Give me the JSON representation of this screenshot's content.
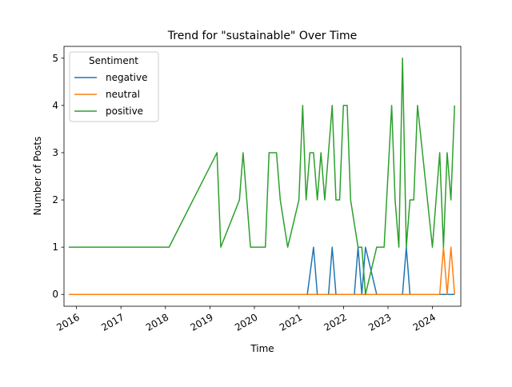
{
  "chart_data": {
    "type": "line",
    "title": "Trend for \"sustainable\" Over Time",
    "xlabel": "Time",
    "ylabel": "Number of Posts",
    "x_axis": {
      "ticks": [
        "2016",
        "2017",
        "2018",
        "2019",
        "2020",
        "2021",
        "2022",
        "2023",
        "2024"
      ],
      "range": [
        "2015-09-22",
        "2024-08-20"
      ]
    },
    "y_axis": {
      "ticks": [
        0,
        1,
        2,
        3,
        4,
        5
      ],
      "range": [
        -0.25,
        5.25
      ]
    },
    "grid": false,
    "legend": {
      "title": "Sentiment",
      "position": "top-left"
    },
    "series": [
      {
        "name": "negative",
        "color": "#1f77b4",
        "points": [
          [
            "2015-10-31",
            0
          ],
          [
            "2021-03-10",
            0
          ],
          [
            "2021-04-30",
            1
          ],
          [
            "2021-05-31",
            0
          ],
          [
            "2021-08-31",
            0
          ],
          [
            "2021-09-30",
            1
          ],
          [
            "2021-10-31",
            0
          ],
          [
            "2022-03-31",
            0
          ],
          [
            "2022-04-30",
            1
          ],
          [
            "2022-05-31",
            0
          ],
          [
            "2022-06-30",
            1
          ],
          [
            "2022-09-30",
            0
          ],
          [
            "2023-04-30",
            0
          ],
          [
            "2023-05-31",
            1
          ],
          [
            "2023-06-30",
            0
          ],
          [
            "2024-06-30",
            0
          ]
        ]
      },
      {
        "name": "neutral",
        "color": "#ff7f0e",
        "points": [
          [
            "2015-10-31",
            0
          ],
          [
            "2024-02-29",
            0
          ],
          [
            "2024-03-31",
            1
          ],
          [
            "2024-04-30",
            0
          ],
          [
            "2024-05-31",
            1
          ],
          [
            "2024-06-30",
            0
          ]
        ]
      },
      {
        "name": "positive",
        "color": "#2ca02c",
        "points": [
          [
            "2015-10-31",
            1
          ],
          [
            "2018-01-31",
            1
          ],
          [
            "2019-02-28",
            3
          ],
          [
            "2019-03-31",
            1
          ],
          [
            "2019-08-31",
            2
          ],
          [
            "2019-09-30",
            3
          ],
          [
            "2019-11-30",
            1
          ],
          [
            "2020-03-31",
            1
          ],
          [
            "2020-04-30",
            3
          ],
          [
            "2020-06-30",
            3
          ],
          [
            "2020-07-31",
            2
          ],
          [
            "2020-09-30",
            1
          ],
          [
            "2020-12-31",
            2
          ],
          [
            "2021-01-31",
            4
          ],
          [
            "2021-02-28",
            2
          ],
          [
            "2021-03-31",
            3
          ],
          [
            "2021-04-30",
            3
          ],
          [
            "2021-05-31",
            2
          ],
          [
            "2021-06-30",
            3
          ],
          [
            "2021-07-31",
            2
          ],
          [
            "2021-09-30",
            4
          ],
          [
            "2021-10-31",
            2
          ],
          [
            "2021-11-30",
            2
          ],
          [
            "2021-12-31",
            4
          ],
          [
            "2022-01-31",
            4
          ],
          [
            "2022-02-28",
            2
          ],
          [
            "2022-04-30",
            1
          ],
          [
            "2022-05-31",
            1
          ],
          [
            "2022-06-30",
            0
          ],
          [
            "2022-09-30",
            1
          ],
          [
            "2022-11-30",
            1
          ],
          [
            "2023-01-31",
            4
          ],
          [
            "2023-02-28",
            2
          ],
          [
            "2023-03-31",
            1
          ],
          [
            "2023-04-30",
            5
          ],
          [
            "2023-05-31",
            1
          ],
          [
            "2023-06-30",
            2
          ],
          [
            "2023-07-31",
            2
          ],
          [
            "2023-08-31",
            4
          ],
          [
            "2023-12-31",
            1
          ],
          [
            "2024-02-29",
            3
          ],
          [
            "2024-03-31",
            1
          ],
          [
            "2024-04-30",
            3
          ],
          [
            "2024-05-31",
            2
          ],
          [
            "2024-06-30",
            4
          ]
        ]
      }
    ]
  }
}
